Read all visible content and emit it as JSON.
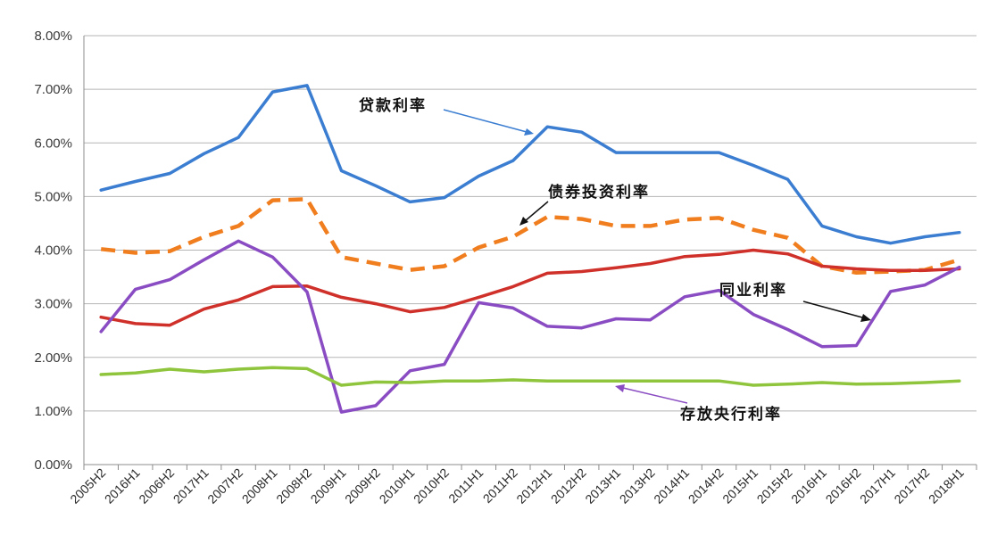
{
  "chart_data": {
    "type": "line",
    "title": "",
    "xlabel": "",
    "ylabel": "",
    "ylim": [
      0,
      8
    ],
    "y_tick_format": "percent_2dp",
    "grid": "horizontal",
    "legend": "none (series labeled by arrow annotations)",
    "categories": [
      "2005H2",
      "2016H1",
      "2006H2",
      "2017H1",
      "2007H2",
      "2008H1",
      "2008H2",
      "2009H1",
      "2009H2",
      "2010H1",
      "2010H2",
      "2011H1",
      "2011H2",
      "2012H1",
      "2012H2",
      "2013H1",
      "2013H2",
      "2014H1",
      "2014H2",
      "2015H1",
      "2015H2",
      "2016H1",
      "2016H2",
      "2017H1",
      "2017H2",
      "2018H1"
    ],
    "y_ticks": [
      "0.00%",
      "1.00%",
      "2.00%",
      "3.00%",
      "4.00%",
      "5.00%",
      "6.00%",
      "7.00%",
      "8.00%"
    ],
    "series": [
      {
        "name": "贷款利率",
        "color": "#3a7dd1",
        "dash": false,
        "values": [
          5.12,
          5.28,
          5.43,
          5.8,
          6.1,
          6.95,
          7.07,
          5.48,
          5.2,
          4.9,
          4.98,
          5.38,
          5.67,
          6.3,
          6.2,
          5.82,
          5.82,
          5.82,
          5.82,
          5.58,
          5.32,
          4.45,
          4.25,
          4.13,
          4.25,
          4.33
        ]
      },
      {
        "name": "债券投资利率",
        "color": "#f07d1e",
        "dash": true,
        "values": [
          4.02,
          3.95,
          3.98,
          4.25,
          4.45,
          4.93,
          4.95,
          3.87,
          3.75,
          3.63,
          3.7,
          4.05,
          4.25,
          4.62,
          4.58,
          4.45,
          4.45,
          4.57,
          4.6,
          4.38,
          4.23,
          3.7,
          3.58,
          3.6,
          3.63,
          3.82
        ]
      },
      {
        "name": "同业利率",
        "color": "#cf3029",
        "dash": false,
        "values": [
          2.75,
          2.63,
          2.6,
          2.9,
          3.07,
          3.32,
          3.33,
          3.12,
          3.0,
          2.85,
          2.93,
          3.12,
          3.32,
          3.57,
          3.6,
          3.67,
          3.75,
          3.88,
          3.92,
          4.0,
          3.93,
          3.7,
          3.65,
          3.62,
          3.62,
          3.65
        ]
      },
      {
        "name": "",
        "color": "#8a4cc2",
        "dash": false,
        "values": [
          2.48,
          3.27,
          3.45,
          3.82,
          4.17,
          3.87,
          3.22,
          0.98,
          1.1,
          1.75,
          1.87,
          3.02,
          2.92,
          2.58,
          2.55,
          2.72,
          2.7,
          3.13,
          3.25,
          2.8,
          2.52,
          2.2,
          2.22,
          3.23,
          3.35,
          3.68
        ]
      },
      {
        "name": "存放央行利率",
        "color": "#8fc43d",
        "dash": false,
        "values": [
          1.68,
          1.71,
          1.78,
          1.73,
          1.78,
          1.81,
          1.79,
          1.48,
          1.54,
          1.53,
          1.56,
          1.56,
          1.58,
          1.56,
          1.56,
          1.56,
          1.56,
          1.56,
          1.56,
          1.48,
          1.5,
          1.53,
          1.5,
          1.51,
          1.53,
          1.56
        ]
      }
    ],
    "annotations": [
      {
        "text": "贷款利率",
        "points_to": "贷款利率"
      },
      {
        "text": "债券投资利率",
        "points_to": "债券投资利率"
      },
      {
        "text": "同业利率",
        "points_to": "同业利率"
      },
      {
        "text": "存放央行利率",
        "points_to": "存放央行利率"
      }
    ]
  }
}
